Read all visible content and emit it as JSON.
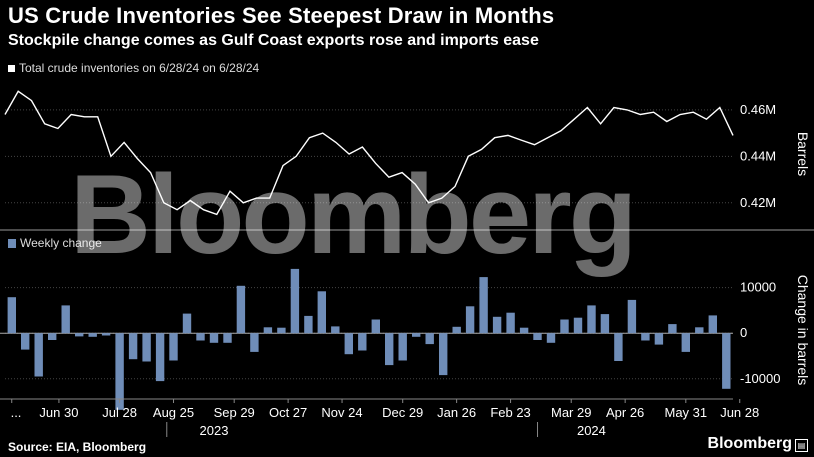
{
  "header": {
    "title": "US Crude Inventories See Steepest Draw in Months",
    "subtitle": "Stockpile change comes as Gulf Coast exports rose and imports ease"
  },
  "footer": {
    "source": "Source: EIA, Bloomberg",
    "brand": "Bloomberg"
  },
  "watermark": "Bloomberg",
  "chart_data": [
    {
      "type": "line",
      "legend": "Total crude inventories on 6/28/24 on 6/28/24",
      "ylabel": "Barrels",
      "yticks": [
        0.42,
        0.44,
        0.46
      ],
      "ytick_labels": [
        "0.42M",
        "0.44M",
        "0.46M"
      ],
      "ylim": [
        0.41,
        0.472
      ],
      "grid": true,
      "color": "#ffffff",
      "series": [
        {
          "values": [
            0.458,
            0.468,
            0.464,
            0.454,
            0.452,
            0.458,
            0.457,
            0.457,
            0.44,
            0.446,
            0.439,
            0.433,
            0.42,
            0.417,
            0.421,
            0.417,
            0.415,
            0.425,
            0.42,
            0.422,
            0.422,
            0.436,
            0.44,
            0.448,
            0.45,
            0.446,
            0.441,
            0.444,
            0.437,
            0.431,
            0.433,
            0.428,
            0.42,
            0.422,
            0.427,
            0.44,
            0.443,
            0.448,
            0.449,
            0.447,
            0.445,
            0.448,
            0.451,
            0.456,
            0.461,
            0.454,
            0.461,
            0.46,
            0.458,
            0.459,
            0.455,
            0.458,
            0.459,
            0.456,
            0.461,
            0.449
          ]
        }
      ]
    },
    {
      "type": "bar",
      "legend": "Weekly change",
      "ylabel": "Change in barrels",
      "yticks": [
        -10000,
        0,
        10000
      ],
      "ytick_labels": [
        "-10000",
        "0",
        "10000"
      ],
      "ylim": [
        -14000,
        16500
      ],
      "grid": true,
      "color": "#6f8db8",
      "xtick_labels": [
        "...",
        "Jun 30",
        "Jul 28",
        "Aug 25",
        "Sep 29",
        "Oct 27",
        "Nov 24",
        "Dec 29",
        "Jan 26",
        "Feb 23",
        "Mar 29",
        "Apr 26",
        "May 31",
        "Jun 28"
      ],
      "xtick_index": [
        0,
        3.5,
        8,
        12,
        16.5,
        20.5,
        24.5,
        29,
        33,
        37,
        41.5,
        45.5,
        50,
        54
      ],
      "year_labels": [
        "2023",
        "2024"
      ],
      "year_index": [
        15,
        43
      ],
      "series": [
        {
          "values": [
            7900,
            -3600,
            -9500,
            -1500,
            6100,
            -700,
            -800,
            -500,
            -16800,
            -5700,
            -6200,
            -10500,
            -6000,
            4300,
            -1600,
            -2100,
            -2100,
            10400,
            -4100,
            1300,
            1200,
            14100,
            3800,
            9200,
            1500,
            -4600,
            -3800,
            3000,
            -7000,
            -6000,
            -800,
            -2400,
            -9200,
            1400,
            5900,
            12300,
            3600,
            4500,
            1200,
            -1500,
            -2100,
            3000,
            3400,
            6100,
            4200,
            -6100,
            7300,
            -1600,
            -2500,
            2000,
            -4100,
            1300,
            3900,
            -12200
          ]
        }
      ]
    }
  ]
}
